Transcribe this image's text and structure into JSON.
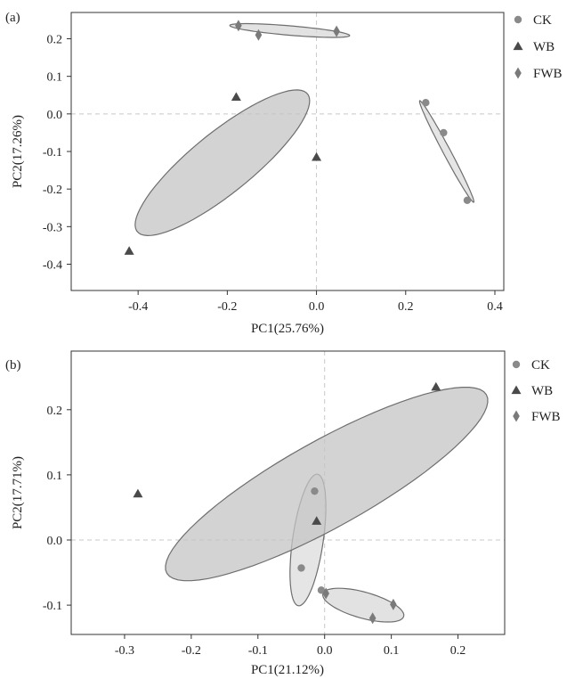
{
  "chart_data": [
    {
      "type": "scatter",
      "panel_label": "(a)",
      "xlabel": "PC1(25.76%)",
      "ylabel": "PC2(17.26%)",
      "xlim": [
        -0.55,
        0.42
      ],
      "ylim": [
        -0.47,
        0.27
      ],
      "xticks": [
        -0.4,
        -0.2,
        0.0,
        0.2,
        0.4
      ],
      "xtick_labels": [
        "-0.4",
        "-0.2",
        "0.0",
        "0.2",
        "0.4"
      ],
      "yticks": [
        -0.4,
        -0.3,
        -0.2,
        -0.1,
        0.0,
        0.1,
        0.2
      ],
      "ytick_labels": [
        "-0.4",
        "-0.3",
        "-0.2",
        "-0.1",
        "0.0",
        "0.1",
        "0.2"
      ],
      "legend_position": "right, outside",
      "series": [
        {
          "name": "CK",
          "marker": "circle",
          "color": "#8a8a8a",
          "x": [
            0.245,
            0.285,
            0.338
          ],
          "y": [
            0.03,
            -0.05,
            -0.23
          ],
          "ellipse": {
            "fill": "#dcdcdc"
          }
        },
        {
          "name": "WB",
          "marker": "triangle",
          "color": "#4a4a4a",
          "x": [
            -0.42,
            -0.18,
            0.0
          ],
          "y": [
            -0.365,
            0.045,
            -0.115
          ],
          "ellipse": {
            "fill": "#c4c4c4"
          }
        },
        {
          "name": "FWB",
          "marker": "diamond",
          "color": "#7a7a7a",
          "x": [
            -0.175,
            -0.13,
            0.045
          ],
          "y": [
            0.235,
            0.21,
            0.22
          ],
          "ellipse": {
            "fill": "#d8d8d8"
          }
        }
      ]
    },
    {
      "type": "scatter",
      "panel_label": "(b)",
      "xlabel": "PC1(21.12%)",
      "ylabel": "PC2(17.71%)",
      "xlim": [
        -0.38,
        0.27
      ],
      "ylim": [
        -0.145,
        0.29
      ],
      "xticks": [
        -0.3,
        -0.2,
        -0.1,
        0.0,
        0.1,
        0.2
      ],
      "xtick_labels": [
        "-0.3",
        "-0.2",
        "-0.1",
        "0.0",
        "0.1",
        "0.2"
      ],
      "yticks": [
        -0.1,
        0.0,
        0.1,
        0.2
      ],
      "ytick_labels": [
        "-0.1",
        "0.0",
        "0.1",
        "0.2"
      ],
      "legend_position": "top-right, outside",
      "series": [
        {
          "name": "CK",
          "marker": "circle",
          "color": "#8a8a8a",
          "x": [
            -0.035,
            -0.015,
            -0.005
          ],
          "y": [
            -0.043,
            0.075,
            -0.077
          ],
          "ellipse": {
            "fill": "#dcdcdc"
          }
        },
        {
          "name": "WB",
          "marker": "triangle",
          "color": "#4a4a4a",
          "x": [
            -0.28,
            -0.012,
            0.167
          ],
          "y": [
            0.071,
            0.029,
            0.235
          ],
          "ellipse": {
            "fill": "#c4c4c4"
          }
        },
        {
          "name": "FWB",
          "marker": "diamond",
          "color": "#7a7a7a",
          "x": [
            0.002,
            0.072,
            0.103
          ],
          "y": [
            -0.082,
            -0.12,
            -0.099
          ],
          "ellipse": {
            "fill": "#d8d8d8"
          }
        }
      ]
    }
  ]
}
